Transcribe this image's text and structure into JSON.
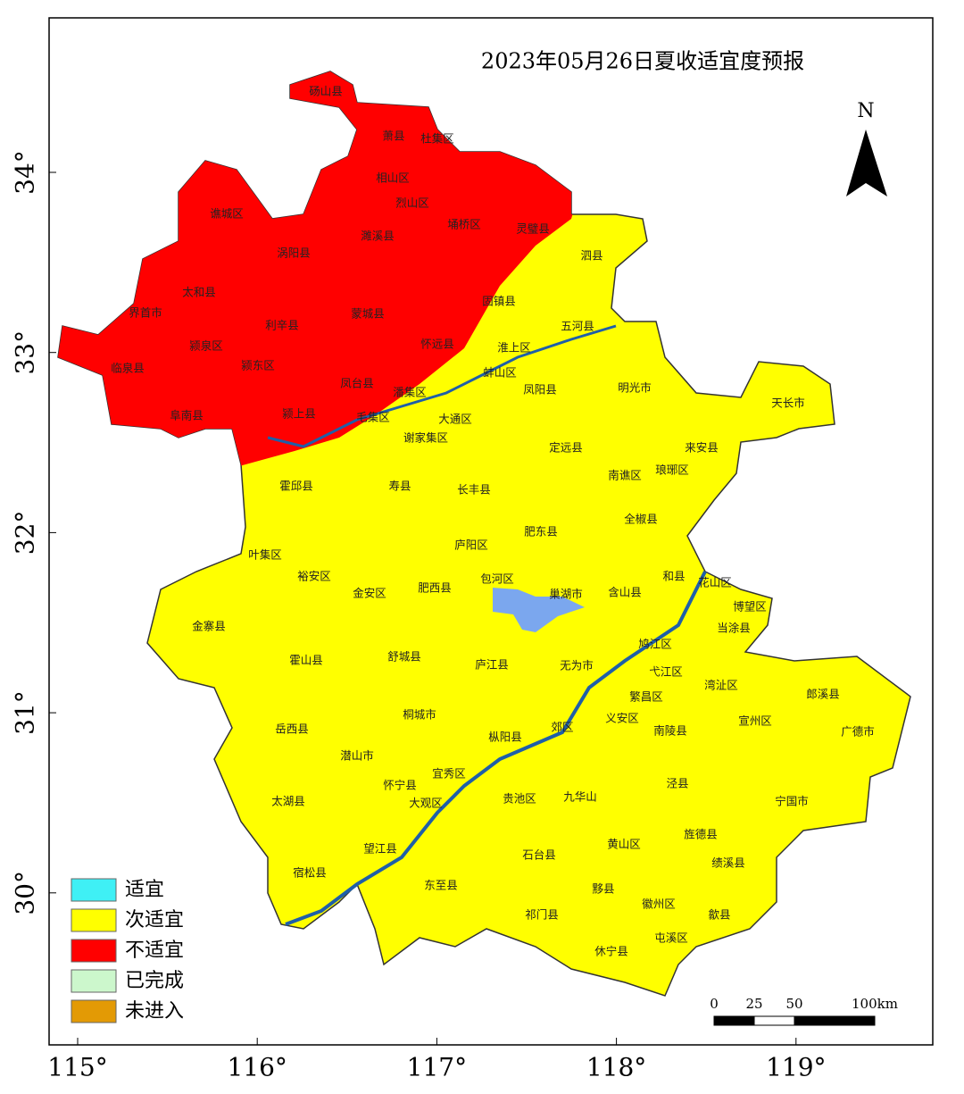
{
  "title": "2023年05月26日夏收适宜度预报",
  "north": "N",
  "lon_ticks": [
    {
      "value": 115,
      "label": "115°"
    },
    {
      "value": 116,
      "label": "116°"
    },
    {
      "value": 117,
      "label": "117°"
    },
    {
      "value": 118,
      "label": "118°"
    },
    {
      "value": 119,
      "label": "119°"
    }
  ],
  "lat_ticks": [
    {
      "value": 30,
      "label": "30°"
    },
    {
      "value": 31,
      "label": "31°"
    },
    {
      "value": 32,
      "label": "32°"
    },
    {
      "value": 33,
      "label": "33°"
    },
    {
      "value": 34,
      "label": "34°"
    }
  ],
  "legend": [
    {
      "label": "适宜",
      "color": "#3ff0f5"
    },
    {
      "label": "次适宜",
      "color": "#ffff00"
    },
    {
      "label": "不适宜",
      "color": "#ff0000"
    },
    {
      "label": "已完成",
      "color": "#ccf7cc"
    },
    {
      "label": "未进入",
      "color": "#e39a05"
    }
  ],
  "scale_bar": [
    0,
    25,
    50,
    {
      "value": 100,
      "label": "100km"
    }
  ],
  "labels": [
    "砀山县",
    "萧县",
    "杜集区",
    "相山区",
    "烈山区",
    "谯城区",
    "濉溪县",
    "埇桥区",
    "灵璧县",
    "泗县",
    "涡阳县",
    "太和县",
    "界首市",
    "利辛县",
    "蒙城县",
    "固镇县",
    "五河县",
    "颍泉区",
    "怀远县",
    "淮上区",
    "临泉县",
    "颍东区",
    "蚌山区",
    "凤台县",
    "凤阳县",
    "明光市",
    "天长市",
    "潘集区",
    "阜南县",
    "颍上县",
    "毛集区",
    "大通区",
    "谢家集区",
    "定远县",
    "来安县",
    "南谯区",
    "琅琊区",
    "霍邱县",
    "寿县",
    "长丰县",
    "全椒县",
    "肥东县",
    "庐阳区",
    "叶集区",
    "裕安区",
    "包河区",
    "和县",
    "花山区",
    "金安区",
    "肥西县",
    "巢湖市",
    "含山县",
    "博望区",
    "金寨县",
    "当涂县",
    "鸠江区",
    "霍山县",
    "舒城县",
    "庐江县",
    "无为市",
    "弋江区",
    "湾沚区",
    "郎溪县",
    "繁昌区",
    "宣州区",
    "岳西县",
    "桐城市",
    "义安区",
    "郊区",
    "枞阳县",
    "南陵县",
    "广德市",
    "潜山市",
    "宜秀区",
    "怀宁县",
    "泾县",
    "贵池区",
    "九华山",
    "宁国市",
    "太湖县",
    "大观区",
    "旌德县",
    "望江县",
    "黄山区",
    "石台县",
    "绩溪县",
    "宿松县",
    "东至县",
    "黟县",
    "徽州区",
    "歙县",
    "祁门县",
    "屯溪区",
    "休宁县"
  ]
}
